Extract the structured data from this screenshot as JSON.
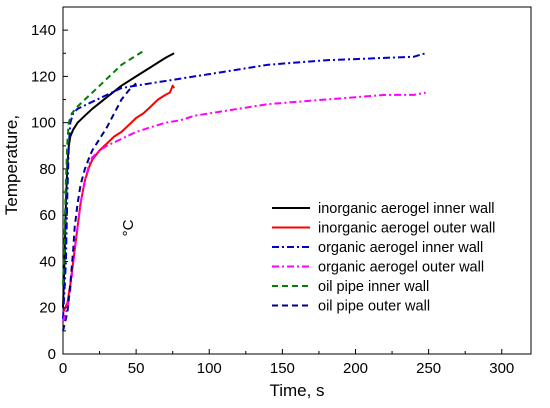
{
  "chart_data": {
    "type": "line",
    "xlabel": "Time, s",
    "ylabel": "Temperature,",
    "ylabel_unit": "°C",
    "xlim": [
      0,
      320
    ],
    "ylim": [
      0,
      150
    ],
    "xticks": [
      0,
      50,
      100,
      150,
      200,
      250,
      300
    ],
    "yticks": [
      0,
      20,
      40,
      60,
      80,
      100,
      120,
      140
    ],
    "grid": false,
    "legend_position": "lower-right",
    "series": [
      {
        "name": "inorganic aerogel inner wall",
        "color": "#000000",
        "dash": "solid",
        "points": [
          [
            0,
            20
          ],
          [
            1,
            40
          ],
          [
            2,
            65
          ],
          [
            3,
            82
          ],
          [
            4,
            90
          ],
          [
            5,
            94
          ],
          [
            7,
            97
          ],
          [
            10,
            100
          ],
          [
            15,
            103
          ],
          [
            20,
            106
          ],
          [
            30,
            111
          ],
          [
            40,
            116
          ],
          [
            50,
            120
          ],
          [
            60,
            124
          ],
          [
            70,
            128
          ],
          [
            76,
            130
          ]
        ]
      },
      {
        "name": "inorganic aerogel outer wall",
        "color": "#ff0000",
        "dash": "solid",
        "points": [
          [
            0,
            18
          ],
          [
            3,
            22
          ],
          [
            5,
            30
          ],
          [
            8,
            45
          ],
          [
            10,
            55
          ],
          [
            12,
            65
          ],
          [
            15,
            75
          ],
          [
            18,
            81
          ],
          [
            20,
            84
          ],
          [
            25,
            88
          ],
          [
            30,
            91
          ],
          [
            35,
            94
          ],
          [
            40,
            96
          ],
          [
            45,
            99
          ],
          [
            50,
            102
          ],
          [
            55,
            104
          ],
          [
            60,
            107
          ],
          [
            65,
            110
          ],
          [
            70,
            112
          ],
          [
            73,
            113
          ],
          [
            75,
            116
          ],
          [
            76,
            115
          ]
        ]
      },
      {
        "name": "organic aerogel inner wall",
        "color": "#0000cd",
        "dash": "dashdot",
        "points": [
          [
            0,
            15
          ],
          [
            2,
            40
          ],
          [
            3,
            70
          ],
          [
            4,
            90
          ],
          [
            5,
            100
          ],
          [
            7,
            104
          ],
          [
            10,
            106
          ],
          [
            20,
            109
          ],
          [
            30,
            112
          ],
          [
            40,
            115
          ],
          [
            60,
            117
          ],
          [
            80,
            119
          ],
          [
            100,
            121
          ],
          [
            120,
            123
          ],
          [
            140,
            125
          ],
          [
            160,
            126
          ],
          [
            180,
            127
          ],
          [
            200,
            127.5
          ],
          [
            220,
            128
          ],
          [
            240,
            128.5
          ],
          [
            245,
            129.5
          ],
          [
            248,
            130
          ]
        ]
      },
      {
        "name": "organic aerogel outer wall",
        "color": "#ff00ff",
        "dash": "dashdot",
        "points": [
          [
            0,
            14
          ],
          [
            3,
            20
          ],
          [
            5,
            28
          ],
          [
            8,
            45
          ],
          [
            10,
            55
          ],
          [
            12,
            65
          ],
          [
            15,
            75
          ],
          [
            18,
            82
          ],
          [
            20,
            85
          ],
          [
            25,
            88
          ],
          [
            30,
            90
          ],
          [
            40,
            93
          ],
          [
            50,
            96
          ],
          [
            60,
            98
          ],
          [
            70,
            100
          ],
          [
            80,
            101
          ],
          [
            90,
            103
          ],
          [
            100,
            104
          ],
          [
            120,
            106
          ],
          [
            140,
            108
          ],
          [
            160,
            109
          ],
          [
            180,
            110
          ],
          [
            200,
            111
          ],
          [
            220,
            112
          ],
          [
            240,
            112
          ],
          [
            248,
            113
          ]
        ]
      },
      {
        "name": "oil pipe inner wall",
        "color": "#008000",
        "dash": "dash",
        "points": [
          [
            0,
            30
          ],
          [
            1,
            50
          ],
          [
            2,
            75
          ],
          [
            3,
            92
          ],
          [
            4,
            100
          ],
          [
            6,
            104
          ],
          [
            10,
            107
          ],
          [
            15,
            110
          ],
          [
            20,
            113
          ],
          [
            25,
            116
          ],
          [
            30,
            119
          ],
          [
            35,
            122
          ],
          [
            40,
            125
          ],
          [
            45,
            127
          ],
          [
            50,
            129
          ],
          [
            55,
            131
          ]
        ]
      },
      {
        "name": "oil pipe outer wall",
        "color": "#00008b",
        "dash": "dash",
        "points": [
          [
            0,
            10
          ],
          [
            3,
            18
          ],
          [
            5,
            30
          ],
          [
            7,
            45
          ],
          [
            8,
            55
          ],
          [
            10,
            65
          ],
          [
            12,
            73
          ],
          [
            15,
            80
          ],
          [
            18,
            85
          ],
          [
            20,
            88
          ],
          [
            25,
            93
          ],
          [
            30,
            98
          ],
          [
            35,
            104
          ],
          [
            40,
            110
          ],
          [
            45,
            114
          ],
          [
            50,
            117
          ]
        ]
      }
    ]
  }
}
